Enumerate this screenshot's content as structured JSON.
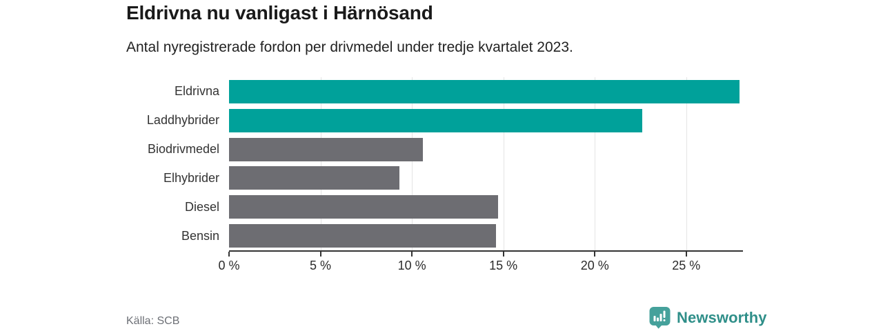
{
  "chart_data": {
    "type": "bar",
    "orientation": "horizontal",
    "title": "Eldrivna nu vanligast i Härnösand",
    "subtitle": "Antal nyregistrerade fordon per drivmedel under tredje kvartalet 2023.",
    "categories": [
      "Eldrivna",
      "Laddhybrider",
      "Biodrivmedel",
      "Elhybrider",
      "Diesel",
      "Bensin"
    ],
    "values": [
      27.9,
      22.6,
      10.6,
      9.3,
      14.7,
      14.6
    ],
    "unit": "%",
    "xlabel": "",
    "ylabel": "",
    "xlim": [
      0,
      28.1
    ],
    "x_ticks": [
      0,
      5,
      10,
      15,
      20,
      25
    ],
    "x_tick_labels": [
      "0 %",
      "5 %",
      "10 %",
      "15 %",
      "20 %",
      "25 %"
    ],
    "grid": "vertical gridlines at ticks",
    "legend": "none",
    "bar_colors": [
      "#00a19a",
      "#00a19a",
      "#6d6d72",
      "#6d6d72",
      "#6d6d72",
      "#6d6d72"
    ],
    "highlight_color": "#00a19a",
    "default_color": "#6d6d72",
    "gridline_color": "#e4e4e4",
    "axis_color": "#333333"
  },
  "footer": {
    "source": "Källa: SCB",
    "brand": "Newsworthy",
    "brand_text_color": "#2f8f89",
    "brand_icon_color": "#45a19b"
  }
}
